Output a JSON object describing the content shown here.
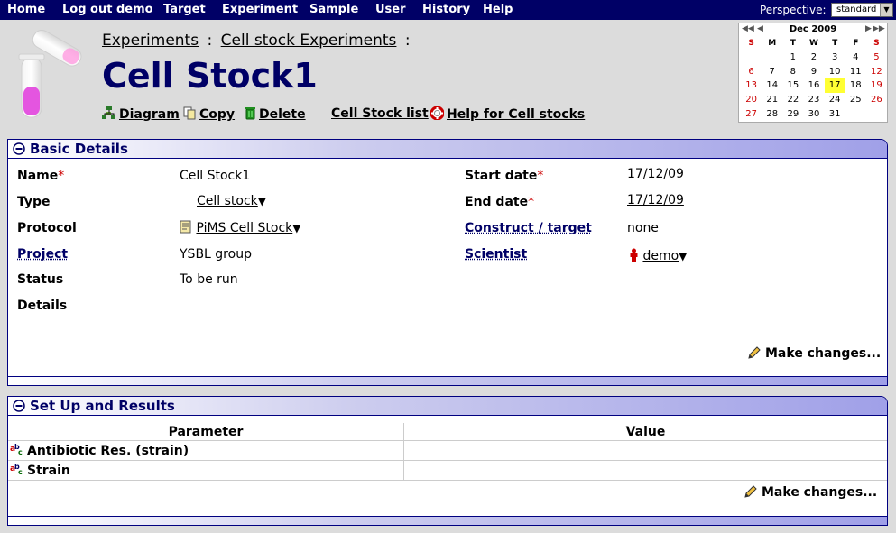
{
  "nav": {
    "items": [
      "Home",
      "Log out demo",
      "Target",
      "Experiment",
      "Sample",
      "User",
      "History",
      "Help"
    ],
    "perspective_label": "Perspective:",
    "perspective_value": "standard"
  },
  "breadcrumb": {
    "experiments": "Experiments",
    "sep1": ":",
    "cell_stock_experiments": "Cell stock Experiments",
    "sep2": ":"
  },
  "page_title": "Cell Stock1",
  "actions": {
    "diagram": "Diagram",
    "copy": "Copy",
    "delete": "Delete",
    "list": "Cell Stock list",
    "help": "Help for Cell stocks"
  },
  "calendar": {
    "month": "Dec 2009",
    "dows": [
      "S",
      "M",
      "T",
      "W",
      "T",
      "F",
      "S"
    ],
    "weeks": [
      [
        "",
        "",
        "1",
        "2",
        "3",
        "4",
        "5"
      ],
      [
        "6",
        "7",
        "8",
        "9",
        "10",
        "11",
        "12"
      ],
      [
        "13",
        "14",
        "15",
        "16",
        "17",
        "18",
        "19"
      ],
      [
        "20",
        "21",
        "22",
        "23",
        "24",
        "25",
        "26"
      ],
      [
        "27",
        "28",
        "29",
        "30",
        "31",
        "",
        ""
      ]
    ],
    "today": "17",
    "colors": {
      "weekend": "#cc0000",
      "today_bg": "#ffff33"
    }
  },
  "basic": {
    "title": "Basic Details",
    "name_label": "Name",
    "name_value": "Cell Stock1",
    "type_label": "Type",
    "type_value": "Cell stock",
    "protocol_label": "Protocol",
    "protocol_value": "PiMS Cell Stock",
    "project_label": "Project",
    "project_value": "YSBL group",
    "status_label": "Status",
    "status_value": "To be run",
    "details_label": "Details",
    "start_label": "Start date",
    "start_value": "17/12/09",
    "end_label": "End date",
    "end_value": "17/12/09",
    "construct_label": "Construct / target",
    "construct_value": "none",
    "scientist_label": "Scientist",
    "scientist_value": "demo",
    "required_mark": "*",
    "make_changes": "Make changes..."
  },
  "results": {
    "title": "Set Up and Results",
    "col_parameter": "Parameter",
    "col_value": "Value",
    "rows": [
      {
        "parameter": "Antibiotic Res. (strain)",
        "value": ""
      },
      {
        "parameter": "Strain",
        "value": ""
      }
    ],
    "make_changes": "Make changes..."
  },
  "colors": {
    "nav_bg": "#000066",
    "title": "#000066",
    "page_bg": "#dcdcdc"
  }
}
